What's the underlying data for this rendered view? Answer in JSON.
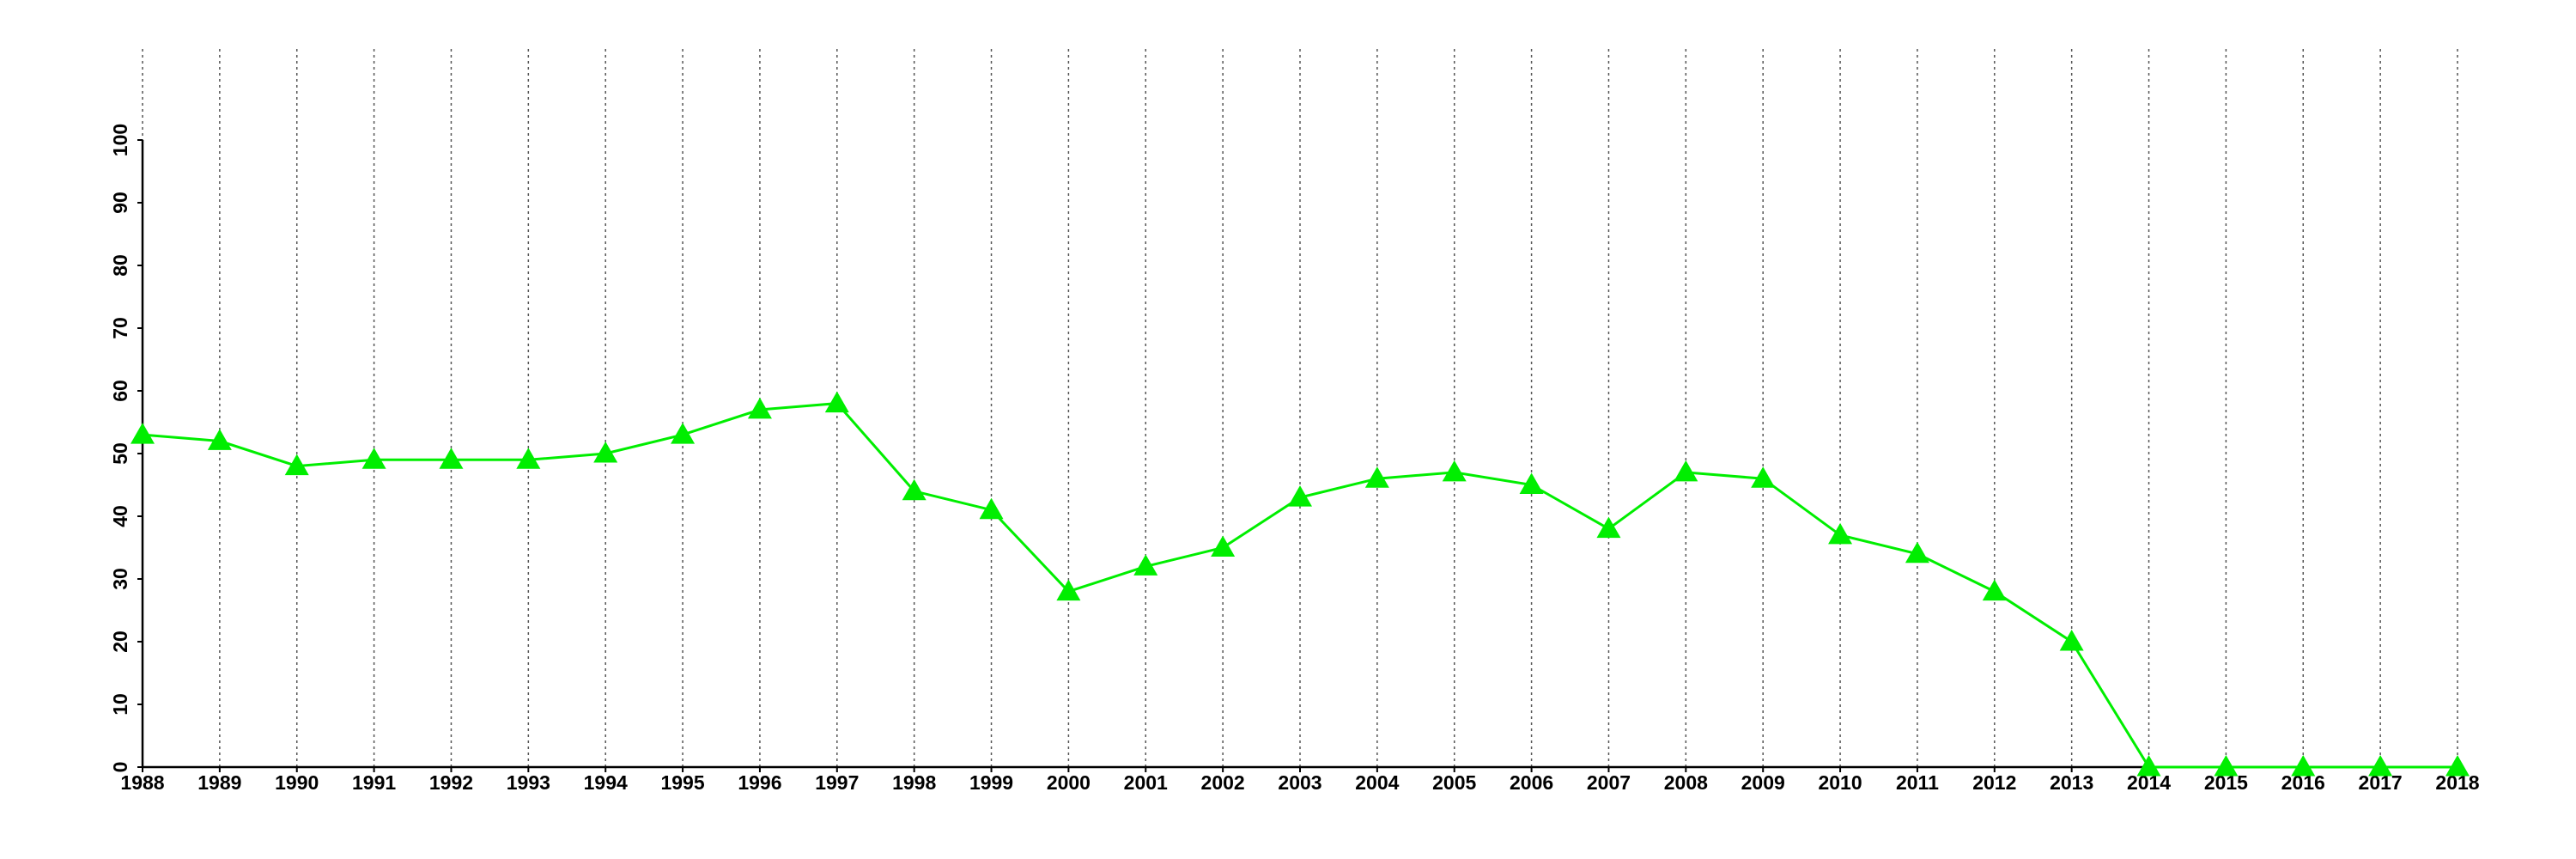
{
  "chart_data": {
    "type": "line",
    "x": [
      1988,
      1989,
      1990,
      1991,
      1992,
      1993,
      1994,
      1995,
      1996,
      1997,
      1998,
      1999,
      2000,
      2001,
      2002,
      2003,
      2004,
      2005,
      2006,
      2007,
      2008,
      2009,
      2010,
      2011,
      2012,
      2013,
      2014,
      2015,
      2016,
      2017,
      2018
    ],
    "xlim": [
      1988,
      2018
    ],
    "series": [
      {
        "color": "#00ee00",
        "values": [
          53,
          52,
          48,
          49,
          49,
          49,
          50,
          53,
          57,
          58,
          44,
          41,
          28,
          32,
          35,
          43,
          46,
          47,
          45,
          38,
          47,
          46,
          37,
          34,
          28,
          20,
          0,
          0,
          0,
          0,
          0
        ]
      }
    ],
    "ylim": [
      0,
      100
    ],
    "yticks": [
      0,
      10,
      20,
      30,
      40,
      50,
      60,
      70,
      80,
      90,
      100
    ],
    "grid": "x",
    "marker": "triangle"
  }
}
